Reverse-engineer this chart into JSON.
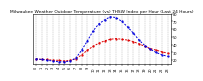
{
  "title": "Milwaukee Weather Outdoor Temperature (vs) THSW Index per Hour (Last 24 Hours)",
  "hours": [
    0,
    1,
    2,
    3,
    4,
    5,
    6,
    7,
    8,
    9,
    10,
    11,
    12,
    13,
    14,
    15,
    16,
    17,
    18,
    19,
    20,
    21,
    22,
    23
  ],
  "temp": [
    22,
    21,
    21,
    20,
    20,
    19,
    20,
    22,
    27,
    33,
    38,
    42,
    45,
    47,
    48,
    47,
    46,
    44,
    41,
    38,
    35,
    33,
    31,
    29
  ],
  "thsw": [
    22,
    21,
    20,
    19,
    18,
    18,
    19,
    23,
    33,
    45,
    58,
    67,
    72,
    76,
    75,
    70,
    63,
    55,
    46,
    39,
    34,
    30,
    27,
    25
  ],
  "temp_color": "#dd0000",
  "thsw_color": "#0000dd",
  "bg_color": "#ffffff",
  "grid_color": "#888888",
  "ylim_min": 15,
  "ylim_max": 80,
  "ytick_vals": [
    20,
    30,
    40,
    50,
    60,
    70,
    80
  ],
  "ytick_labels": [
    "20",
    "30",
    "40",
    "50",
    "60",
    "70",
    "80"
  ],
  "title_fontsize": 3.2,
  "tick_fontsize": 2.5,
  "line_width": 0.7,
  "marker_size": 1.2
}
